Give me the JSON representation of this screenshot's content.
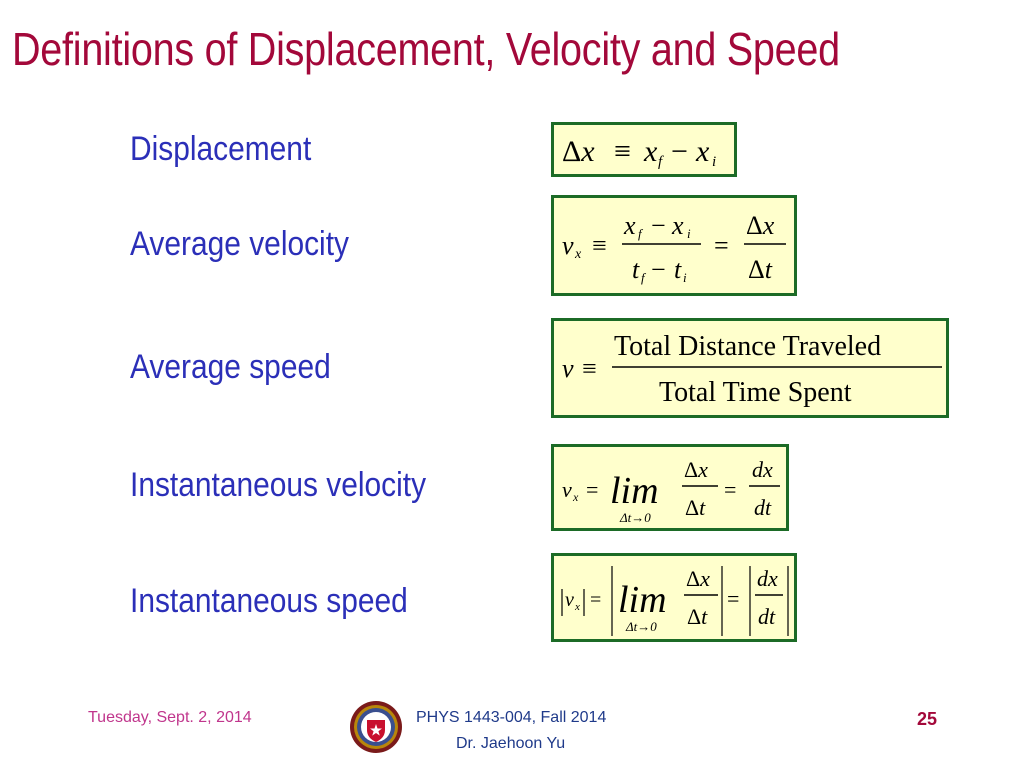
{
  "slide": {
    "title": "Definitions of Displacement, Velocity and Speed"
  },
  "definitions": [
    {
      "label": "Displacement",
      "formula": "Δx ≡ x_f − x_i"
    },
    {
      "label": "Average velocity",
      "formula": "v_x ≡ (x_f − x_i)/(t_f − t_i) = Δx/Δt"
    },
    {
      "label": "Average speed",
      "formula": "v ≡ Total Distance Traveled / Total Time Spent",
      "numerator": "Total Distance Traveled",
      "denominator": "Total Time Spent"
    },
    {
      "label": "Instantaneous velocity",
      "formula": "v_x = lim_{Δt→0} Δx/Δt = dx/dt",
      "lim_text": "lim",
      "lim_sub": "Δt→0"
    },
    {
      "label": "Instantaneous speed",
      "formula": "|v_x| = |lim_{Δt→0} Δx/Δt| = |dx/dt|",
      "lim_text": "lim",
      "lim_sub": "Δt→0"
    }
  ],
  "footer": {
    "date": "Tuesday, Sept. 2, 2014",
    "course": "PHYS 1443-004, Fall 2014",
    "author": "Dr. Jaehoon Yu",
    "page_number": "25"
  },
  "colors": {
    "title": "#a3083a",
    "label": "#2b2fb8",
    "box_fill": "#ffffcc",
    "box_border": "#1c6b26",
    "footer_date": "#c0358c",
    "footer_text": "#1f3a8a"
  },
  "icons": {
    "seal": "university-seal-icon"
  }
}
